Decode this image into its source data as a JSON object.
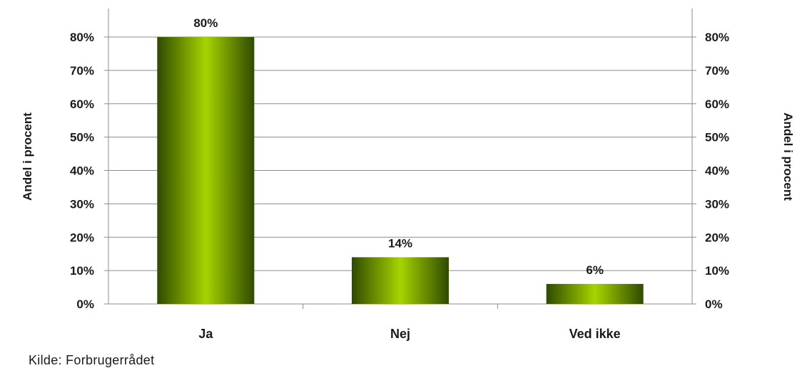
{
  "chart_data": {
    "type": "bar",
    "categories": [
      "Ja",
      "Nej",
      "Ved ikke"
    ],
    "values": [
      80,
      14,
      6
    ],
    "data_labels": [
      "80%",
      "14%",
      "6%"
    ],
    "title": "",
    "xlabel": "",
    "ylabel": "Andel i procent",
    "ylabel_right": "Andel i procent",
    "ylim": [
      0,
      80
    ],
    "y_ticks": [
      "0%",
      "10%",
      "20%",
      "30%",
      "40%",
      "50%",
      "60%",
      "70%",
      "80%"
    ],
    "grid": true,
    "legend": "none",
    "bar_color_dark": "#2f4a00",
    "bar_color_light": "#a6d400"
  },
  "source": "Kilde: Forbrugerrådet"
}
